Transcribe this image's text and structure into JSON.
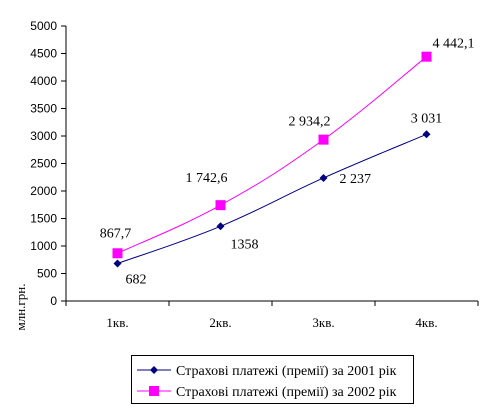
{
  "chart_data": {
    "type": "line",
    "categories": [
      "1кв.",
      "2кв.",
      "3кв.",
      "4кв."
    ],
    "ylabel": "млн.грн.",
    "ylim": [
      0,
      5000
    ],
    "yticks": [
      0,
      500,
      1000,
      1500,
      2000,
      2500,
      3000,
      3500,
      4000,
      4500,
      5000
    ],
    "grid": false,
    "legend_position": "bottom",
    "series": [
      {
        "name": "Страхові платежі (премії) за 2001 рік",
        "values": [
          682,
          1358,
          2237,
          3031
        ],
        "labels": [
          "682",
          "1358",
          "2 237",
          "3 031"
        ],
        "color": "#000080",
        "marker": "diamond"
      },
      {
        "name": "Страхові платежі (премії) за 2002 рік",
        "values": [
          867.7,
          1742.6,
          2934.2,
          4442.1
        ],
        "labels": [
          "867,7",
          "1 742,6",
          "2 934,2",
          "4 442,1"
        ],
        "color": "#ff00ff",
        "marker": "square"
      }
    ]
  }
}
